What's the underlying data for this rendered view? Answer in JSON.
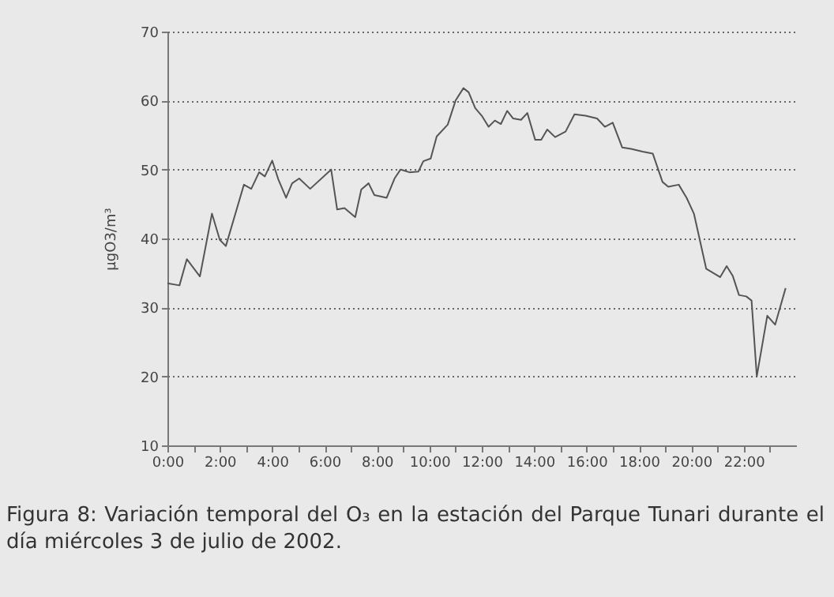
{
  "chart_data": {
    "type": "line",
    "ylabel": "µgO3/m³",
    "annotations": [
      "Figura 8: Variación temporal del O₃ en la estación del Parque Tunari durante el día miércoles 3 de julio de 2002."
    ],
    "xlim": [
      0,
      24
    ],
    "ylim": [
      10,
      70
    ],
    "xticks": [
      {
        "value": 0,
        "label": "0:00"
      },
      {
        "value": 1,
        "label": null
      },
      {
        "value": 2,
        "label": "2:00"
      },
      {
        "value": 3,
        "label": null
      },
      {
        "value": 4,
        "label": "4:00"
      },
      {
        "value": 5,
        "label": null
      },
      {
        "value": 6,
        "label": "6:00"
      },
      {
        "value": 7,
        "label": null
      },
      {
        "value": 8,
        "label": "8:00"
      },
      {
        "value": 9,
        "label": null
      },
      {
        "value": 10,
        "label": "10:00"
      },
      {
        "value": 11,
        "label": null
      },
      {
        "value": 12,
        "label": "12:00"
      },
      {
        "value": 13,
        "label": null
      },
      {
        "value": 14,
        "label": "14:00"
      },
      {
        "value": 15,
        "label": null
      },
      {
        "value": 16,
        "label": "16:00"
      },
      {
        "value": 17,
        "label": null
      },
      {
        "value": 18,
        "label": "18:00"
      },
      {
        "value": 19,
        "label": null
      },
      {
        "value": 20,
        "label": "20:00"
      },
      {
        "value": 21,
        "label": null
      },
      {
        "value": 22,
        "label": "22:00"
      },
      {
        "value": 23,
        "label": null
      }
    ],
    "yticks": [
      10,
      20,
      30,
      40,
      50,
      60,
      70
    ],
    "grid": "y",
    "marker": "none",
    "line_style": "solid",
    "x": [
      0,
      0.46,
      0.74,
      1.24,
      1.7,
      2.0,
      2.23,
      2.92,
      3.2,
      3.5,
      3.72,
      4.0,
      4.23,
      4.53,
      4.76,
      5.03,
      5.45,
      6.25,
      6.48,
      6.76,
      7.17,
      7.4,
      7.68,
      7.9,
      8.37,
      8.67,
      8.9,
      9.24,
      9.58,
      9.77,
      10.05,
      10.28,
      10.7,
      11.0,
      11.3,
      11.5,
      11.75,
      12.0,
      12.26,
      12.5,
      12.73,
      12.97,
      13.2,
      13.5,
      13.74,
      14.04,
      14.27,
      14.5,
      14.8,
      15.2,
      15.54,
      15.96,
      16.4,
      16.7,
      17.0,
      17.36,
      17.7,
      18.14,
      18.53,
      18.9,
      19.12,
      19.52,
      19.82,
      20.1,
      20.57,
      21.1,
      21.35,
      21.58,
      21.82,
      22.1,
      22.3,
      22.5,
      22.9,
      23.2,
      23.6
    ],
    "series": [
      {
        "color": "#555555",
        "values": [
          33.5,
          33.2,
          37,
          34.5,
          43.6,
          39.8,
          38.9,
          47.8,
          47.2,
          49.6,
          49,
          51.3,
          48.6,
          45.9,
          48,
          48.7,
          47.2,
          50,
          44.2,
          44.4,
          43.1,
          47.1,
          48,
          46.3,
          45.9,
          48.7,
          50,
          49.6,
          49.7,
          51.2,
          51.6,
          54.8,
          56.5,
          60,
          61.8,
          61.2,
          58.9,
          57.8,
          56.2,
          57.1,
          56.6,
          58.5,
          57.4,
          57.2,
          58.2,
          54.3,
          54.3,
          55.8,
          54.7,
          55.5,
          58,
          57.8,
          57.4,
          56.2,
          56.8,
          53.2,
          53,
          52.6,
          52.3,
          48.2,
          47.5,
          47.8,
          45.9,
          43.6,
          35.6,
          34.4,
          36,
          34.6,
          31.8,
          31.6,
          31,
          20,
          28.8,
          27.5,
          32.8
        ]
      }
    ]
  }
}
